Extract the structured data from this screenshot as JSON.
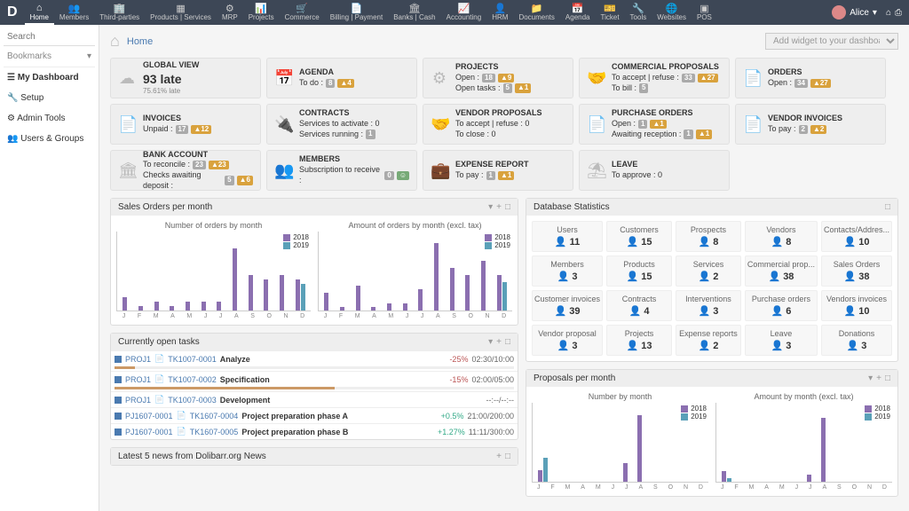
{
  "nav": {
    "items": [
      {
        "label": "Home",
        "active": true
      },
      {
        "label": "Members"
      },
      {
        "label": "Third-parties"
      },
      {
        "label": "Products | Services"
      },
      {
        "label": "MRP"
      },
      {
        "label": "Projects"
      },
      {
        "label": "Commerce"
      },
      {
        "label": "Billing | Payment"
      },
      {
        "label": "Banks | Cash"
      },
      {
        "label": "Accounting"
      },
      {
        "label": "HRM"
      },
      {
        "label": "Documents"
      },
      {
        "label": "Agenda"
      },
      {
        "label": "Ticket"
      },
      {
        "label": "Tools"
      },
      {
        "label": "Websites"
      },
      {
        "label": "POS"
      }
    ],
    "user": "Alice"
  },
  "sidebar": {
    "search_ph": "Search",
    "bookmarks": "Bookmarks",
    "items": [
      "My Dashboard",
      "Setup",
      "Admin Tools",
      "Users & Groups"
    ]
  },
  "breadcrumb": {
    "home": "Home",
    "widget_ph": "Add widget to your dashboard..."
  },
  "tiles": [
    {
      "title": "GLOBAL VIEW",
      "big": "93 late",
      "sub": "75.61% late",
      "icon": "☁"
    },
    {
      "title": "AGENDA",
      "rows": [
        {
          "t": "To do :",
          "b1": "8",
          "c1": "b-gray",
          "b2": "▲4",
          "c2": "b-orange"
        }
      ],
      "icon": "📅"
    },
    {
      "title": "PROJECTS",
      "rows": [
        {
          "t": "Open :",
          "b1": "18",
          "c1": "b-gray",
          "b2": "▲9",
          "c2": "b-orange"
        },
        {
          "t": "Open tasks :",
          "b1": "5",
          "c1": "b-gray",
          "b2": "▲1",
          "c2": "b-orange"
        }
      ],
      "icon": "⚙"
    },
    {
      "title": "COMMERCIAL PROPOSALS",
      "rows": [
        {
          "t": "To accept | refuse :",
          "b1": "33",
          "c1": "b-gray",
          "b2": "▲27",
          "c2": "b-orange"
        },
        {
          "t": "To bill :",
          "b1": "5",
          "c1": "b-gray"
        }
      ],
      "icon": "🤝"
    },
    {
      "title": "ORDERS",
      "rows": [
        {
          "t": "Open :",
          "b1": "34",
          "c1": "b-gray",
          "b2": "▲27",
          "c2": "b-orange"
        }
      ],
      "icon": "📄"
    },
    {
      "title": "INVOICES",
      "rows": [
        {
          "t": "Unpaid :",
          "b1": "17",
          "c1": "b-gray",
          "b2": "▲12",
          "c2": "b-orange"
        }
      ],
      "icon": "📄"
    },
    {
      "title": "CONTRACTS",
      "rows": [
        {
          "t": "Services to activate :  0"
        },
        {
          "t": "Services running :",
          "b1": "1",
          "c1": "b-gray"
        }
      ],
      "icon": "🔌"
    },
    {
      "title": "VENDOR PROPOSALS",
      "rows": [
        {
          "t": "To accept | refuse :  0"
        },
        {
          "t": "To close :  0"
        }
      ],
      "icon": "🤝"
    },
    {
      "title": "PURCHASE ORDERS",
      "rows": [
        {
          "t": "Open :",
          "b1": "1",
          "c1": "b-gray",
          "b2": "▲1",
          "c2": "b-orange"
        },
        {
          "t": "Awaiting reception :",
          "b1": "1",
          "c1": "b-gray",
          "b2": "▲1",
          "c2": "b-orange"
        }
      ],
      "icon": "📄"
    },
    {
      "title": "VENDOR INVOICES",
      "rows": [
        {
          "t": "To pay :",
          "b1": "2",
          "c1": "b-gray",
          "b2": "▲2",
          "c2": "b-orange"
        }
      ],
      "icon": "📄"
    },
    {
      "title": "BANK ACCOUNT",
      "rows": [
        {
          "t": "To reconcile :",
          "b1": "23",
          "c1": "b-gray",
          "b2": "▲23",
          "c2": "b-orange"
        },
        {
          "t": "Checks awaiting deposit :",
          "b1": "5",
          "c1": "b-gray",
          "b2": "▲6",
          "c2": "b-orange"
        }
      ],
      "icon": "🏛"
    },
    {
      "title": "MEMBERS",
      "rows": [
        {
          "t": "Subscription to receive :",
          "b1": "0",
          "c1": "b-gray",
          "b2": "☺",
          "c2": "b-green"
        }
      ],
      "icon": "👥"
    },
    {
      "title": "EXPENSE REPORT",
      "rows": [
        {
          "t": "To pay :",
          "b1": "1",
          "c1": "b-gray",
          "b2": "▲1",
          "c2": "b-orange"
        }
      ],
      "icon": "💼"
    },
    {
      "title": "LEAVE",
      "rows": [
        {
          "t": "To approve :  0"
        }
      ],
      "icon": "⛱"
    }
  ],
  "charts": {
    "panel_title": "Sales Orders per month",
    "c1": {
      "title": "Number of orders by month",
      "ymax": 8,
      "data18": [
        1.5,
        0.5,
        1,
        0.5,
        1,
        1,
        1,
        7,
        4,
        3.5,
        4,
        3.5
      ],
      "data19": [
        0,
        0,
        0,
        0,
        0,
        0,
        0,
        0,
        0,
        0,
        0,
        3
      ],
      "legend": [
        "2018",
        "2019"
      ]
    },
    "c2": {
      "title": "Amount of orders by month (excl. tax)",
      "ymax": 2000,
      "data18": [
        500,
        100,
        700,
        100,
        200,
        200,
        600,
        1900,
        1200,
        1000,
        1400,
        1000
      ],
      "data19": [
        0,
        0,
        0,
        0,
        0,
        0,
        0,
        0,
        0,
        0,
        0,
        800
      ],
      "legend": [
        "2018",
        "2019"
      ]
    },
    "months": [
      "J",
      "F",
      "M",
      "A",
      "M",
      "J",
      "J",
      "A",
      "S",
      "O",
      "N",
      "D"
    ]
  },
  "stats": {
    "title": "Database Statistics",
    "rows": [
      [
        {
          "n": "Users",
          "v": "11"
        },
        {
          "n": "Customers",
          "v": "15"
        },
        {
          "n": "Prospects",
          "v": "8"
        },
        {
          "n": "Vendors",
          "v": "8"
        },
        {
          "n": "Contacts/Addres...",
          "v": "10"
        }
      ],
      [
        {
          "n": "Members",
          "v": "3"
        },
        {
          "n": "Products",
          "v": "15"
        },
        {
          "n": "Services",
          "v": "2"
        },
        {
          "n": "Commercial prop...",
          "v": "38"
        },
        {
          "n": "Sales Orders",
          "v": "38"
        }
      ],
      [
        {
          "n": "Customer invoices",
          "v": "39"
        },
        {
          "n": "Contracts",
          "v": "4"
        },
        {
          "n": "Interventions",
          "v": "3"
        },
        {
          "n": "Purchase orders",
          "v": "6"
        },
        {
          "n": "Vendors invoices",
          "v": "10"
        }
      ],
      [
        {
          "n": "Vendor proposal",
          "v": "3"
        },
        {
          "n": "Projects",
          "v": "13"
        },
        {
          "n": "Expense reports",
          "v": "2"
        },
        {
          "n": "Leave",
          "v": "3"
        },
        {
          "n": "Donations",
          "v": "3"
        }
      ]
    ]
  },
  "tasks": {
    "title": "Currently open tasks",
    "rows": [
      {
        "proj": "PROJ1",
        "code": "TK1007-0001",
        "name": "Analyze",
        "pct": "-25%",
        "pctc": "",
        "time": "02:30/10:00",
        "bar": 5
      },
      {
        "proj": "PROJ1",
        "code": "TK1007-0002",
        "name": "Specification",
        "pct": "-15%",
        "pctc": "",
        "time": "02:00/05:00",
        "bar": 55
      },
      {
        "proj": "PROJ1",
        "code": "TK1007-0003",
        "name": "Development",
        "pct": "",
        "time": "--:--/--:--",
        "bar": 0
      },
      {
        "proj": "PJ1607-0001",
        "code": "TK1607-0004",
        "name": "Project preparation phase A",
        "pct": "+0.5%",
        "pctc": "green",
        "time": "21:00/200:00",
        "bar": 0
      },
      {
        "proj": "PJ1607-0001",
        "code": "TK1607-0005",
        "name": "Project preparation phase B",
        "pct": "+1.27%",
        "pctc": "green",
        "time": "11:11/300:00",
        "bar": 0
      }
    ]
  },
  "news": {
    "title": "Latest 5 news from Dolibarr.org News"
  },
  "proposals": {
    "title": "Proposals per month",
    "c1": {
      "title": "Number by month",
      "ymax": 3,
      "data18": [
        0.5,
        0,
        0,
        0,
        0,
        0,
        0.8,
        2.8,
        0,
        0,
        0,
        0
      ],
      "data19": [
        1,
        0,
        0,
        0,
        0,
        0,
        0,
        0,
        0,
        0,
        0,
        0
      ],
      "legend": [
        "2018",
        "2019"
      ]
    },
    "c2": {
      "title": "Amount by month (excl. tax)",
      "ymax": 20,
      "data18": [
        3,
        0,
        0,
        0,
        0,
        0,
        2,
        18,
        0,
        0,
        0,
        0
      ],
      "data19": [
        1,
        0,
        0,
        0,
        0,
        0,
        0,
        0,
        0,
        0,
        0,
        0
      ],
      "legend": [
        "2018",
        "2019"
      ]
    }
  },
  "colors": {
    "y18": "#8b6fb0",
    "y19": "#5aa0b8"
  }
}
